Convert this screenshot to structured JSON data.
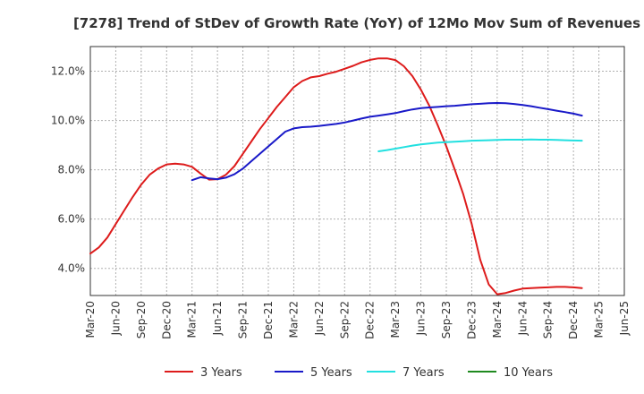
{
  "chart_data": {
    "type": "line",
    "title": "[7278]  Trend of StDev of Growth Rate (YoY) of 12Mo Mov Sum of Revenues",
    "xlabel": "",
    "ylabel": "",
    "x_ticks": [
      "Mar-20",
      "Jun-20",
      "Sep-20",
      "Dec-20",
      "Mar-21",
      "Jun-21",
      "Sep-21",
      "Dec-21",
      "Mar-22",
      "Jun-22",
      "Sep-22",
      "Dec-22",
      "Mar-23",
      "Jun-23",
      "Sep-23",
      "Dec-23",
      "Mar-24",
      "Jun-24",
      "Sep-24",
      "Dec-24",
      "Mar-25",
      "Jun-25"
    ],
    "y_ticks": [
      "4.0%",
      "6.0%",
      "8.0%",
      "10.0%",
      "12.0%"
    ],
    "y_tick_values": [
      4,
      6,
      8,
      10,
      12
    ],
    "ylim": [
      2.9,
      13.0
    ],
    "grid": true,
    "legend_position": "bottom",
    "series": [
      {
        "name": "3 Years",
        "color": "#dd1b1b",
        "values": [
          4.6,
          4.85,
          5.25,
          5.8,
          6.35,
          6.9,
          7.4,
          7.8,
          8.05,
          8.22,
          8.25,
          8.22,
          8.12,
          7.85,
          7.6,
          7.62,
          7.8,
          8.15,
          8.65,
          9.15,
          9.65,
          10.1,
          10.55,
          10.95,
          11.35,
          11.6,
          11.75,
          11.8,
          11.9,
          11.98,
          12.1,
          12.22,
          12.36,
          12.46,
          12.52,
          12.52,
          12.45,
          12.2,
          11.8,
          11.25,
          10.6,
          9.8,
          8.95,
          8.0,
          7.0,
          5.8,
          4.35,
          3.35,
          2.95,
          3.0,
          3.1,
          3.18,
          3.2,
          3.22,
          3.23,
          3.25,
          3.25,
          3.23,
          3.2
        ]
      },
      {
        "name": "5 Years",
        "color": "#1919c8",
        "values": [
          null,
          null,
          null,
          null,
          null,
          null,
          null,
          null,
          null,
          null,
          null,
          null,
          7.58,
          7.7,
          7.65,
          7.62,
          7.68,
          7.82,
          8.05,
          8.35,
          8.65,
          8.95,
          9.25,
          9.55,
          9.68,
          9.73,
          9.75,
          9.78,
          9.82,
          9.86,
          9.92,
          10.0,
          10.08,
          10.15,
          10.2,
          10.25,
          10.3,
          10.38,
          10.45,
          10.5,
          10.53,
          10.55,
          10.58,
          10.6,
          10.63,
          10.66,
          10.68,
          10.7,
          10.71,
          10.7,
          10.67,
          10.63,
          10.58,
          10.52,
          10.46,
          10.4,
          10.34,
          10.28,
          10.2
        ]
      },
      {
        "name": "7 Years",
        "color": "#22e0e0",
        "values": [
          null,
          null,
          null,
          null,
          null,
          null,
          null,
          null,
          null,
          null,
          null,
          null,
          null,
          null,
          null,
          null,
          null,
          null,
          null,
          null,
          null,
          null,
          null,
          null,
          null,
          null,
          null,
          null,
          null,
          null,
          null,
          null,
          null,
          null,
          8.75,
          8.8,
          8.86,
          8.92,
          8.98,
          9.03,
          9.07,
          9.1,
          9.12,
          9.14,
          9.16,
          9.18,
          9.19,
          9.2,
          9.21,
          9.22,
          9.22,
          9.22,
          9.23,
          9.22,
          9.22,
          9.21,
          9.2,
          9.19,
          9.18
        ]
      },
      {
        "name": "10 Years",
        "color": "#1f8a1f",
        "values": []
      }
    ]
  }
}
